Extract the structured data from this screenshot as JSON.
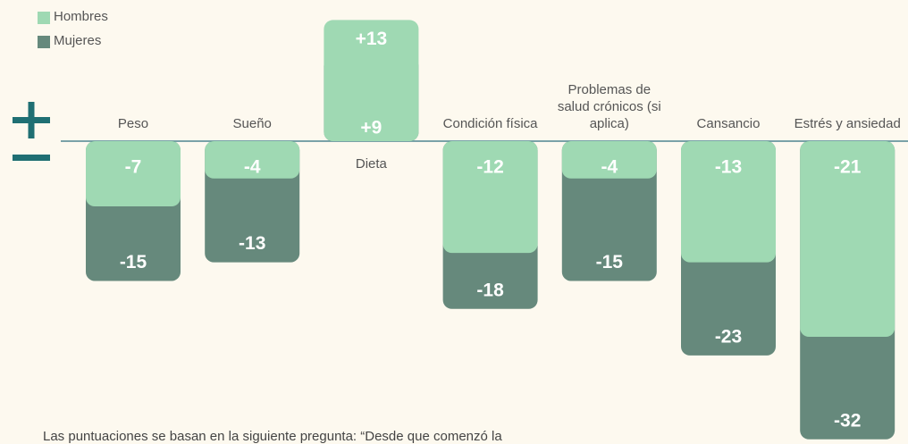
{
  "chart_data": {
    "type": "overlap-bar",
    "categories": [
      "Peso",
      "Sueño",
      "Dieta",
      "Condición física",
      "Problemas de salud crónicos (si aplica)",
      "Cansancio",
      "Estrés y ansiedad"
    ],
    "series": [
      {
        "name": "Mujeres",
        "color": "#66897c",
        "values": [
          -15,
          -13,
          9,
          -18,
          -15,
          -23,
          -32
        ],
        "value_labels": [
          "-15",
          "-13",
          "+9",
          "-18",
          "-15",
          "-23",
          "-32"
        ]
      },
      {
        "name": "Hombres",
        "color": "#9fd9b3",
        "values": [
          -7,
          -4,
          13,
          -12,
          -4,
          -13,
          -21
        ],
        "value_labels": [
          "-7",
          "-4",
          "+13",
          "-12",
          "-4",
          "-13",
          "-21"
        ]
      }
    ],
    "ylim": [
      -32.5,
      14
    ],
    "note": "Las puntuaciones se basan en la siguiente pregunta: “Desde que comenzó la"
  }
}
